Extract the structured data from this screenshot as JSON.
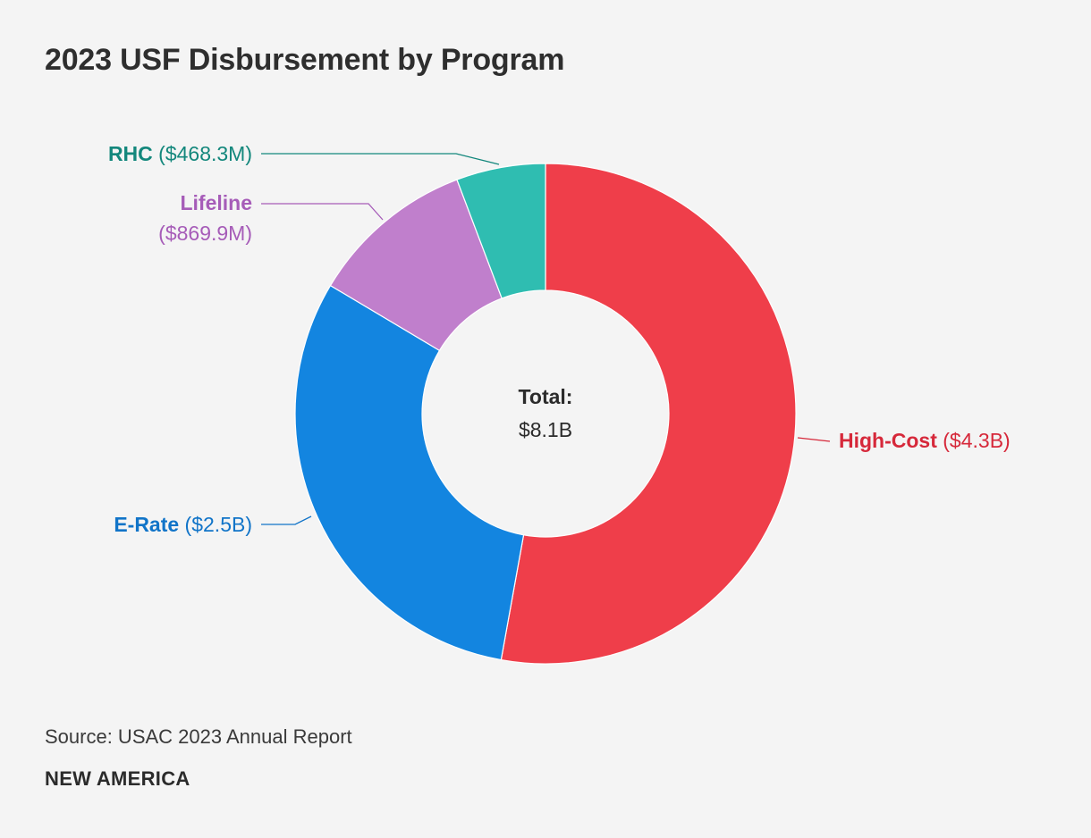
{
  "chart_data": {
    "type": "pie",
    "title": "2023 USF Disbursement by Program",
    "unit": "USD",
    "slices": [
      {
        "name": "High-Cost",
        "value_label": "($4.3B)",
        "value": 4.3,
        "color": "#ef3e4a",
        "label_color": "#d6283a"
      },
      {
        "name": "E-Rate",
        "value_label": "($2.5B)",
        "value": 2.5,
        "color": "#1385e0",
        "label_color": "#1174c8"
      },
      {
        "name": "Lifeline",
        "value_label": "($869.9M)",
        "value": 0.8699,
        "color": "#c07fcc",
        "label_color": "#a65cb8"
      },
      {
        "name": "RHC",
        "value_label": "($468.3M)",
        "value": 0.4683,
        "color": "#2fbdb1",
        "label_color": "#13877c"
      }
    ],
    "center_label": "Total:",
    "center_value": "$8.1B"
  },
  "footer": {
    "source": "Source: USAC 2023 Annual Report",
    "brand": "NEW AMERICA"
  }
}
